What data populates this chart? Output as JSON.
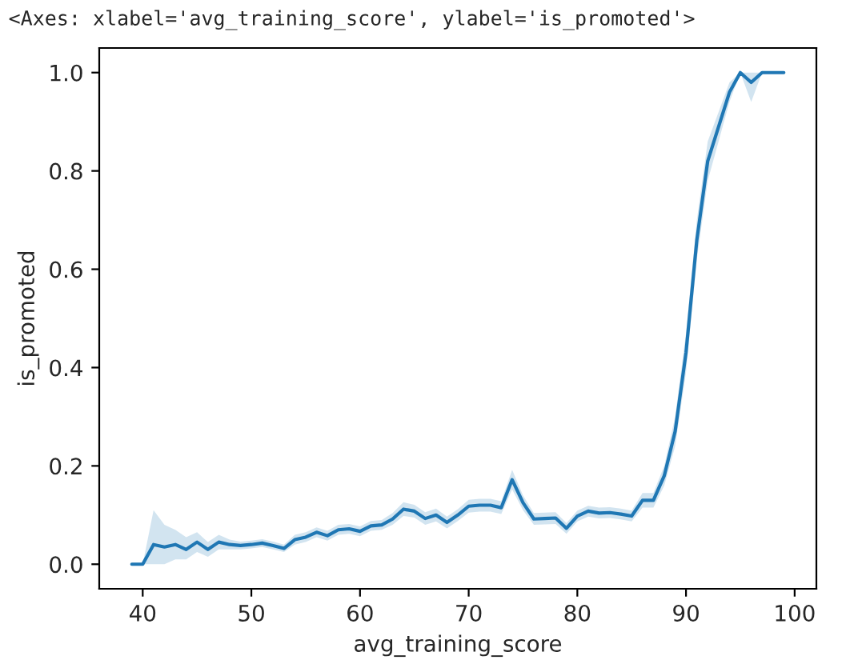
{
  "chart_data": {
    "type": "line",
    "xlabel": "avg_training_score",
    "ylabel": "is_promoted",
    "annotations": [
      "<Axes: xlabel='avg_training_score', ylabel='is_promoted'>"
    ],
    "x": [
      39,
      40,
      41,
      42,
      43,
      44,
      45,
      46,
      47,
      48,
      49,
      50,
      51,
      52,
      53,
      54,
      55,
      56,
      57,
      58,
      59,
      60,
      61,
      62,
      63,
      64,
      65,
      66,
      67,
      68,
      69,
      70,
      71,
      72,
      73,
      74,
      75,
      76,
      77,
      78,
      79,
      80,
      81,
      82,
      83,
      84,
      85,
      86,
      87,
      88,
      89,
      90,
      91,
      92,
      93,
      94,
      95,
      96,
      97,
      98,
      99
    ],
    "series": [
      {
        "color": "#1f77b4",
        "values": [
          0,
          0,
          0.04,
          0.035,
          0.04,
          0.03,
          0.045,
          0.03,
          0.045,
          0.04,
          0.038,
          0.04,
          0.043,
          0.038,
          0.032,
          0.05,
          0.055,
          0.065,
          0.058,
          0.07,
          0.072,
          0.067,
          0.078,
          0.08,
          0.092,
          0.112,
          0.108,
          0.093,
          0.1,
          0.085,
          0.1,
          0.118,
          0.12,
          0.12,
          0.115,
          0.172,
          0.125,
          0.092,
          0.093,
          0.094,
          0.073,
          0.098,
          0.108,
          0.104,
          0.105,
          0.102,
          0.098,
          0.13,
          0.13,
          0.18,
          0.27,
          0.43,
          0.66,
          0.82,
          0.89,
          0.96,
          1.0,
          0.98,
          1.0,
          1.0,
          1.0
        ],
        "lower": [
          0,
          0,
          0.0,
          0.0,
          0.01,
          0.01,
          0.025,
          0.015,
          0.03,
          0.03,
          0.03,
          0.032,
          0.035,
          0.03,
          0.025,
          0.04,
          0.045,
          0.055,
          0.048,
          0.06,
          0.062,
          0.057,
          0.068,
          0.07,
          0.08,
          0.098,
          0.095,
          0.08,
          0.087,
          0.073,
          0.088,
          0.105,
          0.107,
          0.107,
          0.102,
          0.152,
          0.11,
          0.08,
          0.081,
          0.082,
          0.062,
          0.087,
          0.097,
          0.093,
          0.094,
          0.091,
          0.087,
          0.115,
          0.115,
          0.16,
          0.24,
          0.39,
          0.62,
          0.78,
          0.86,
          0.94,
          1.0,
          0.94,
          1.0,
          1.0,
          1.0
        ],
        "upper": [
          0,
          0,
          0.11,
          0.08,
          0.07,
          0.055,
          0.065,
          0.045,
          0.06,
          0.05,
          0.046,
          0.048,
          0.051,
          0.046,
          0.04,
          0.06,
          0.065,
          0.075,
          0.068,
          0.08,
          0.082,
          0.077,
          0.088,
          0.09,
          0.104,
          0.126,
          0.121,
          0.106,
          0.113,
          0.097,
          0.112,
          0.131,
          0.133,
          0.133,
          0.128,
          0.192,
          0.14,
          0.104,
          0.105,
          0.106,
          0.084,
          0.109,
          0.119,
          0.115,
          0.116,
          0.113,
          0.109,
          0.145,
          0.145,
          0.2,
          0.3,
          0.47,
          0.7,
          0.86,
          0.92,
          0.98,
          1.0,
          1.0,
          1.0,
          1.0,
          1.0
        ]
      }
    ],
    "xlim": [
      36,
      102
    ],
    "xticks": [
      40,
      50,
      60,
      70,
      80,
      90,
      100
    ],
    "ylim": [
      -0.05,
      1.05
    ],
    "yticks": [
      {
        "value": 0,
        "label": "0.0"
      },
      0.2,
      0.4,
      0.6,
      0.8,
      {
        "value": 1,
        "label": "1.0"
      }
    ],
    "grid": false
  }
}
